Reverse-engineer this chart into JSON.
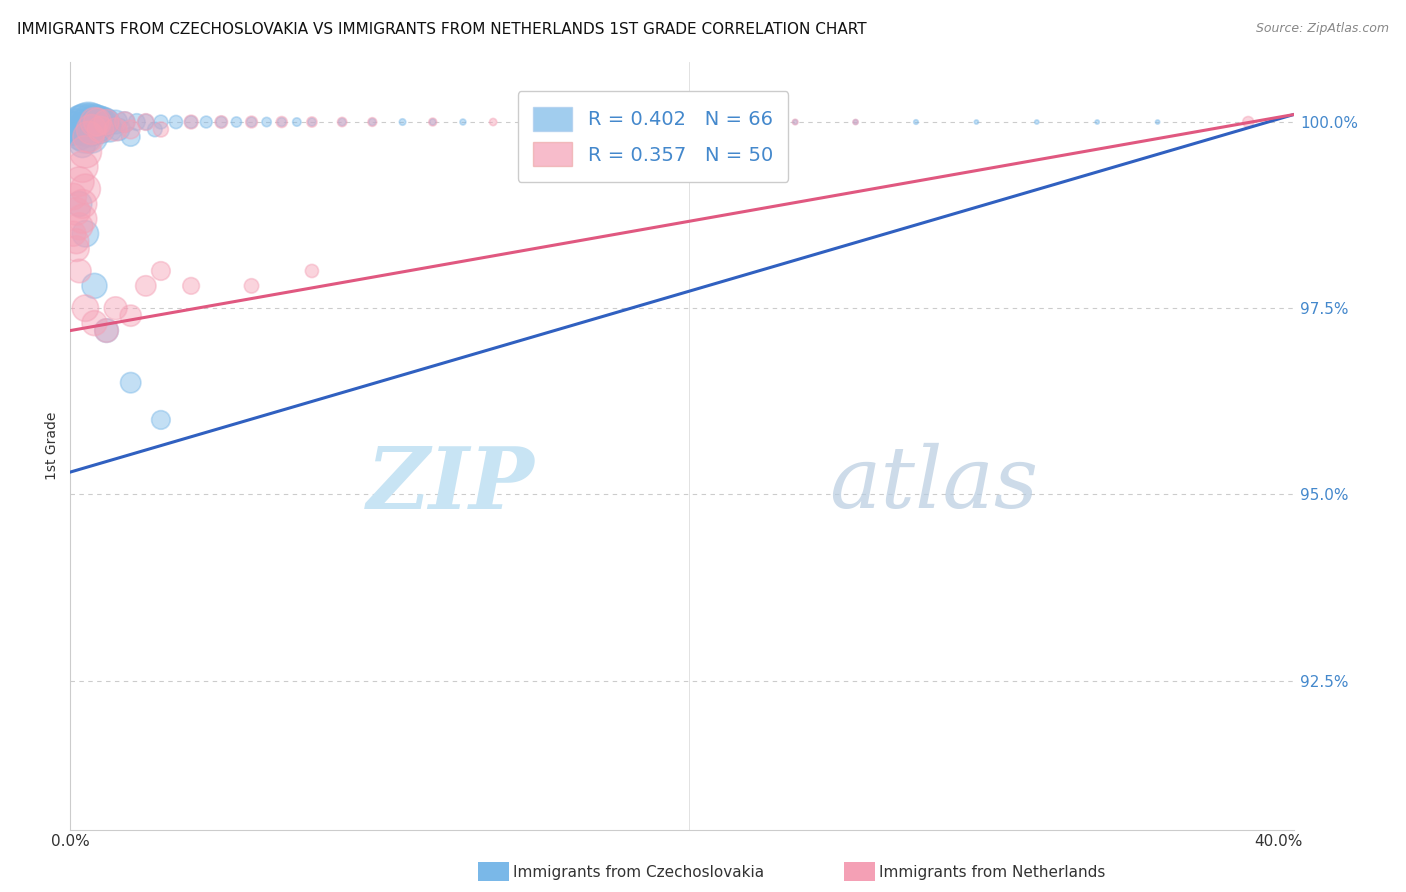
{
  "title": "IMMIGRANTS FROM CZECHOSLOVAKIA VS IMMIGRANTS FROM NETHERLANDS 1ST GRADE CORRELATION CHART",
  "source": "Source: ZipAtlas.com",
  "ylabel": "1st Grade",
  "ytick_labels": [
    "100.0%",
    "97.5%",
    "95.0%",
    "92.5%"
  ],
  "ytick_values": [
    1.0,
    0.975,
    0.95,
    0.925
  ],
  "xlim": [
    0.0,
    0.405
  ],
  "ylim": [
    0.905,
    1.008
  ],
  "legend_blue_r": "R = 0.402",
  "legend_blue_n": "N = 66",
  "legend_pink_r": "R = 0.357",
  "legend_pink_n": "N = 50",
  "blue_color": "#7ab8e8",
  "pink_color": "#f4a0b5",
  "blue_line_color": "#3060c0",
  "pink_line_color": "#e05880",
  "watermark_color": "#d8eef8",
  "background_color": "#ffffff",
  "grid_color": "#cccccc",
  "axis_label_color": "#4488cc",
  "blue_x": [
    0.001,
    0.001,
    0.001,
    0.002,
    0.002,
    0.003,
    0.003,
    0.003,
    0.004,
    0.004,
    0.004,
    0.005,
    0.005,
    0.006,
    0.006,
    0.007,
    0.007,
    0.008,
    0.008,
    0.009,
    0.01,
    0.01,
    0.011,
    0.012,
    0.013,
    0.015,
    0.016,
    0.018,
    0.02,
    0.022,
    0.025,
    0.028,
    0.03,
    0.035,
    0.04,
    0.045,
    0.05,
    0.055,
    0.06,
    0.065,
    0.07,
    0.075,
    0.08,
    0.09,
    0.1,
    0.11,
    0.12,
    0.13,
    0.15,
    0.16,
    0.18,
    0.2,
    0.22,
    0.24,
    0.26,
    0.28,
    0.3,
    0.32,
    0.34,
    0.36,
    0.003,
    0.005,
    0.008,
    0.012,
    0.02,
    0.03
  ],
  "blue_y": [
    1.0,
    0.999,
    0.998,
    1.0,
    0.999,
    1.0,
    0.999,
    0.998,
    1.0,
    0.999,
    0.997,
    1.0,
    0.998,
    1.0,
    0.999,
    1.0,
    0.998,
    1.0,
    0.999,
    1.0,
    1.0,
    0.999,
    1.0,
    1.0,
    0.999,
    1.0,
    0.999,
    1.0,
    0.998,
    1.0,
    1.0,
    0.999,
    1.0,
    1.0,
    1.0,
    1.0,
    1.0,
    1.0,
    1.0,
    1.0,
    1.0,
    1.0,
    1.0,
    1.0,
    1.0,
    1.0,
    1.0,
    1.0,
    1.0,
    1.0,
    1.0,
    1.0,
    1.0,
    1.0,
    1.0,
    1.0,
    1.0,
    1.0,
    1.0,
    1.0,
    0.989,
    0.985,
    0.978,
    0.972,
    0.965,
    0.96
  ],
  "blue_sizes": [
    120,
    100,
    80,
    200,
    150,
    300,
    250,
    200,
    350,
    280,
    200,
    400,
    300,
    450,
    350,
    400,
    300,
    350,
    280,
    320,
    280,
    220,
    250,
    200,
    180,
    160,
    140,
    120,
    100,
    80,
    70,
    60,
    55,
    50,
    45,
    40,
    35,
    30,
    28,
    25,
    22,
    20,
    18,
    16,
    14,
    12,
    11,
    10,
    9,
    8,
    8,
    7,
    7,
    6,
    6,
    6,
    5,
    5,
    5,
    5,
    180,
    200,
    180,
    160,
    120,
    100
  ],
  "pink_x": [
    0.001,
    0.001,
    0.002,
    0.002,
    0.003,
    0.003,
    0.004,
    0.004,
    0.005,
    0.005,
    0.006,
    0.007,
    0.008,
    0.009,
    0.01,
    0.012,
    0.015,
    0.018,
    0.02,
    0.025,
    0.03,
    0.04,
    0.05,
    0.06,
    0.07,
    0.08,
    0.09,
    0.1,
    0.12,
    0.14,
    0.16,
    0.18,
    0.2,
    0.22,
    0.24,
    0.26,
    0.003,
    0.005,
    0.008,
    0.012,
    0.015,
    0.02,
    0.025,
    0.03,
    0.04,
    0.06,
    0.08,
    0.39,
    0.002,
    0.004
  ],
  "pink_y": [
    0.99,
    0.985,
    0.988,
    0.983,
    0.992,
    0.986,
    0.994,
    0.989,
    0.996,
    0.991,
    0.998,
    0.999,
    1.0,
    1.0,
    0.999,
    1.0,
    0.999,
    1.0,
    0.999,
    1.0,
    0.999,
    1.0,
    1.0,
    1.0,
    1.0,
    1.0,
    1.0,
    1.0,
    1.0,
    1.0,
    1.0,
    1.0,
    1.0,
    1.0,
    1.0,
    1.0,
    0.98,
    0.975,
    0.973,
    0.972,
    0.975,
    0.974,
    0.978,
    0.98,
    0.978,
    0.978,
    0.98,
    1.0,
    0.984,
    0.987
  ],
  "pink_sizes": [
    200,
    180,
    220,
    190,
    250,
    210,
    280,
    240,
    300,
    260,
    280,
    260,
    240,
    220,
    200,
    180,
    150,
    120,
    100,
    80,
    65,
    55,
    45,
    40,
    35,
    30,
    25,
    22,
    18,
    15,
    13,
    12,
    11,
    10,
    9,
    8,
    160,
    200,
    180,
    160,
    150,
    130,
    120,
    100,
    80,
    60,
    50,
    35,
    180,
    240
  ]
}
